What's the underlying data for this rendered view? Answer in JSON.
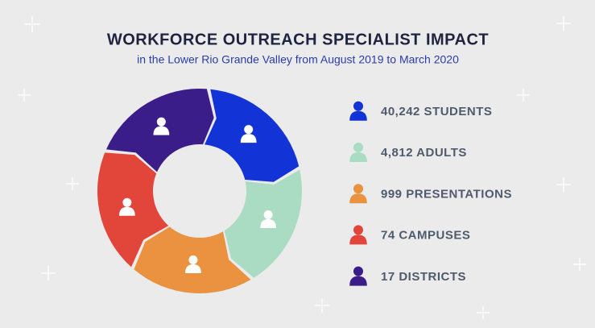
{
  "header": {
    "title": "WORKFORCE OUTREACH SPECIALIST IMPACT",
    "subtitle": "in the Lower Rio Grande Valley from August 2019 to March 2020"
  },
  "items": [
    {
      "label": "40,242 STUDENTS",
      "color": "#1234d6"
    },
    {
      "label": "4,812 ADULTS",
      "color": "#a9dcc2"
    },
    {
      "label": "999 PRESENTATIONS",
      "color": "#ea9240"
    },
    {
      "label": "74 CAMPUSES",
      "color": "#e2463b"
    },
    {
      "label": "17 DISTRICTS",
      "color": "#3b1d8a"
    }
  ]
}
